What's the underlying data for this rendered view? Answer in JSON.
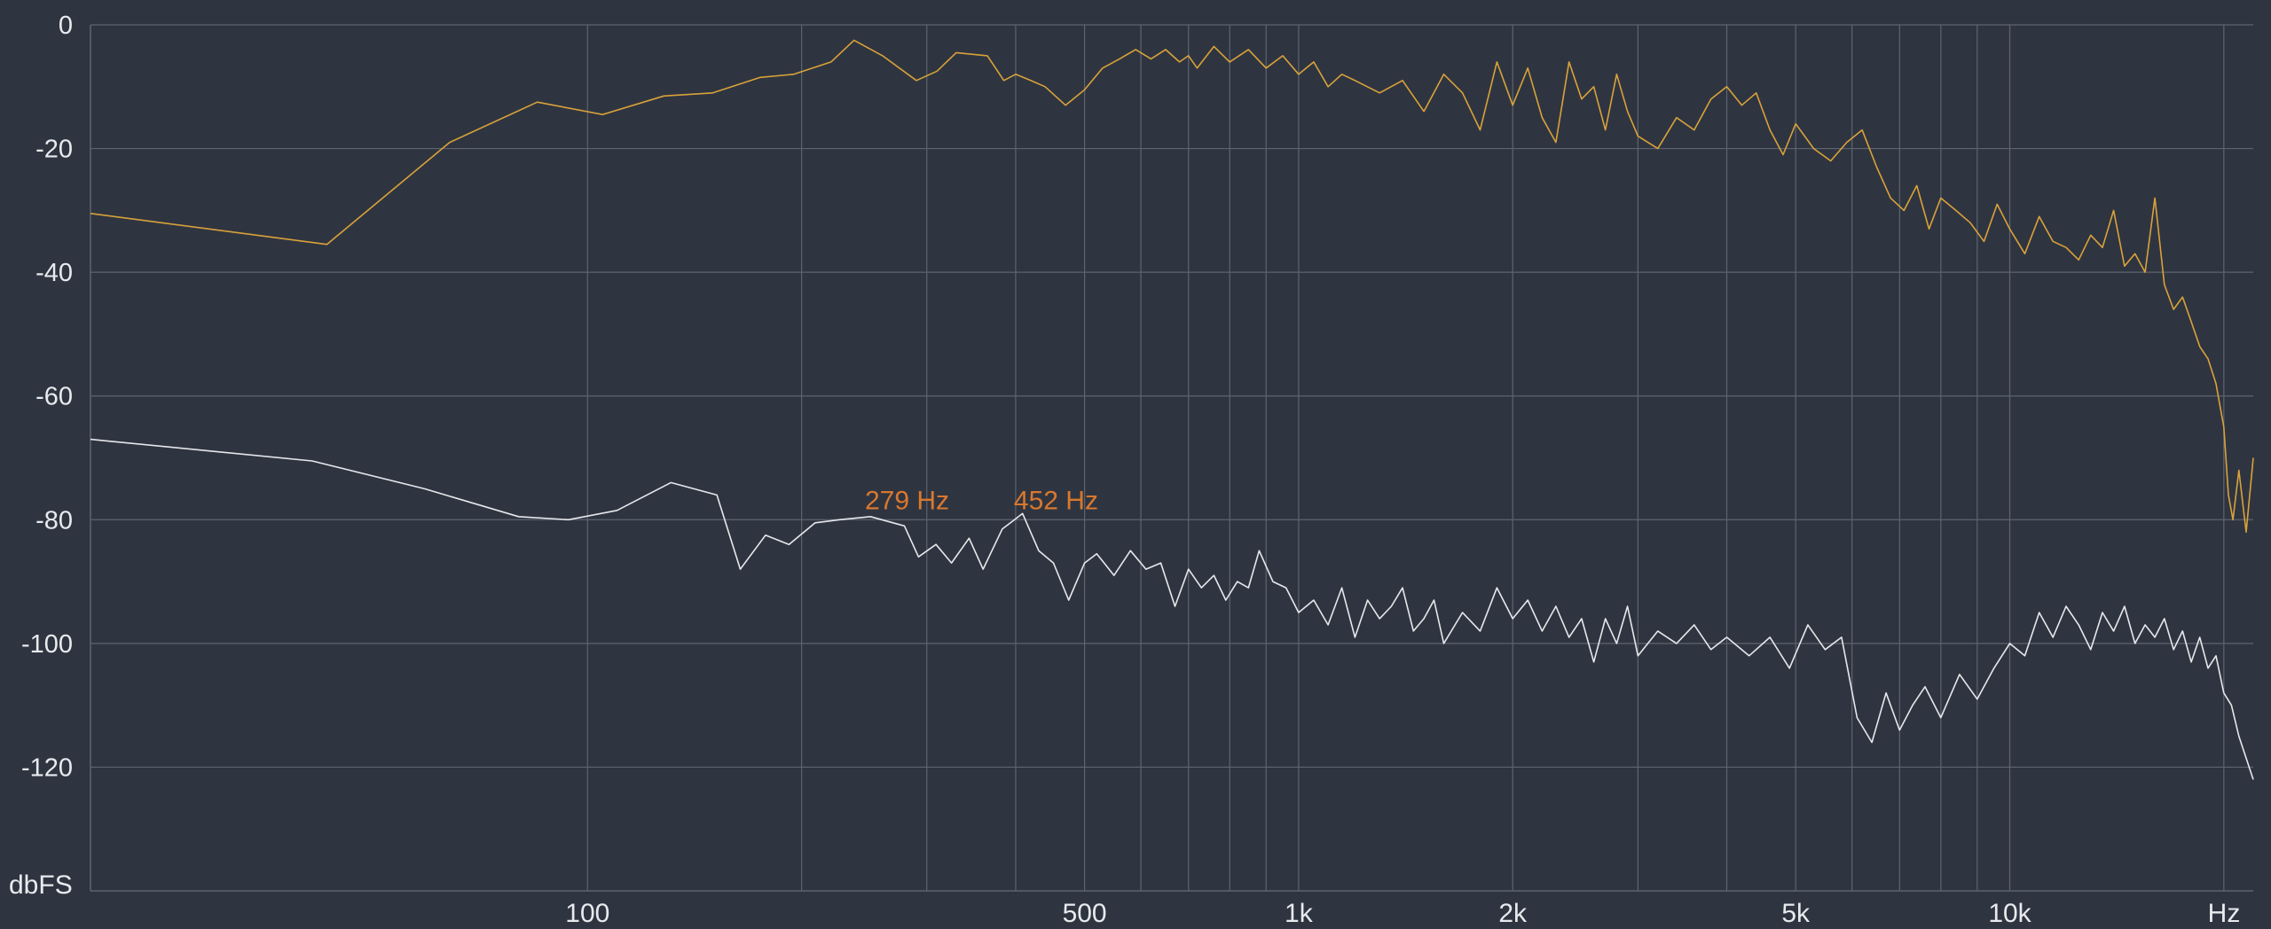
{
  "chart_data": {
    "type": "line",
    "title": "",
    "xlabel": "Hz",
    "ylabel": "dbFS",
    "x_scale": "log",
    "xlim": [
      20,
      22000
    ],
    "ylim": [
      -140,
      0
    ],
    "grid": true,
    "y_ticks": [
      0,
      -20,
      -40,
      -60,
      -80,
      -100,
      -120
    ],
    "y_tick_labels": [
      "0",
      "-20",
      "-40",
      "-60",
      "-80",
      "-100",
      "-120"
    ],
    "x_tick_values": [
      100,
      500,
      1000,
      2000,
      5000,
      10000
    ],
    "x_tick_labels": [
      "100",
      "500",
      "1k",
      "2k",
      "5k",
      "10k"
    ],
    "x_unit_label": "Hz",
    "y_unit_label": "dbFS",
    "minor_gridlines_hz": [
      100,
      200,
      300,
      400,
      500,
      600,
      700,
      800,
      900,
      1000,
      2000,
      3000,
      4000,
      5000,
      6000,
      7000,
      8000,
      9000,
      10000,
      20000
    ],
    "annotations": [
      {
        "text": "279 Hz",
        "x": 279,
        "y": -80
      },
      {
        "text": "452 Hz",
        "x": 452,
        "y": -80
      }
    ],
    "colors": {
      "background": "#2f3540",
      "grid": "#5d6470",
      "series_upper": "#d9a23a",
      "series_lower": "#e6e8ec",
      "annotation": "#d9782e",
      "text": "#e8eaee"
    },
    "series": [
      {
        "color": "#d9a23a",
        "x": [
          20,
          43,
          64,
          85,
          105,
          128,
          150,
          175,
          195,
          220,
          237,
          260,
          290,
          310,
          330,
          365,
          385,
          400,
          420,
          440,
          470,
          500,
          530,
          560,
          590,
          620,
          650,
          680,
          700,
          720,
          760,
          800,
          850,
          900,
          950,
          1000,
          1050,
          1100,
          1150,
          1200,
          1300,
          1400,
          1500,
          1600,
          1700,
          1800,
          1900,
          2000,
          2100,
          2200,
          2300,
          2400,
          2500,
          2600,
          2700,
          2800,
          2900,
          3000,
          3200,
          3400,
          3600,
          3800,
          4000,
          4200,
          4400,
          4600,
          4800,
          5000,
          5300,
          5600,
          5900,
          6200,
          6500,
          6800,
          7100,
          7400,
          7700,
          8000,
          8400,
          8800,
          9200,
          9600,
          10000,
          10500,
          11000,
          11500,
          12000,
          12500,
          13000,
          13500,
          14000,
          14500,
          15000,
          15500,
          16000,
          16500,
          17000,
          17500,
          18000,
          18500,
          19000,
          19500,
          20000,
          20300,
          20600,
          21000,
          21500,
          22000
        ],
        "y": [
          -30.5,
          -35.5,
          -19,
          -12.5,
          -14.5,
          -11.5,
          -11,
          -8.5,
          -8,
          -6,
          -2.5,
          -5,
          -9,
          -7.5,
          -4.5,
          -5,
          -9,
          -8,
          -9,
          -10,
          -13,
          -10.5,
          -7,
          -5.5,
          -4,
          -5.5,
          -4,
          -6,
          -5,
          -7,
          -3.5,
          -6,
          -4,
          -7,
          -5,
          -8,
          -6,
          -10,
          -8,
          -9,
          -11,
          -9,
          -14,
          -8,
          -11,
          -17,
          -6,
          -13,
          -7,
          -15,
          -19,
          -6,
          -12,
          -10,
          -17,
          -8,
          -14,
          -18,
          -20,
          -15,
          -17,
          -12,
          -10,
          -13,
          -11,
          -17,
          -21,
          -16,
          -20,
          -22,
          -19,
          -17,
          -23,
          -28,
          -30,
          -26,
          -33,
          -28,
          -30,
          -32,
          -35,
          -29,
          -33,
          -37,
          -31,
          -35,
          -36,
          -38,
          -34,
          -36,
          -30,
          -39,
          -37,
          -40,
          -28,
          -42,
          -46,
          -44,
          -48,
          -52,
          -54,
          -58,
          -65,
          -76,
          -80,
          -72,
          -82,
          -70
        ],
        "name": ""
      },
      {
        "color": "#e6e8ec",
        "x": [
          20,
          41,
          59,
          80,
          94,
          110,
          131,
          152,
          164,
          178,
          192,
          209,
          226,
          250,
          279,
          292,
          309,
          325,
          344,
          360,
          383,
          409,
          431,
          452,
          475,
          500,
          520,
          550,
          580,
          610,
          640,
          670,
          700,
          730,
          760,
          790,
          820,
          850,
          880,
          920,
          960,
          1000,
          1050,
          1100,
          1150,
          1200,
          1250,
          1300,
          1350,
          1400,
          1450,
          1500,
          1550,
          1600,
          1700,
          1800,
          1900,
          2000,
          2100,
          2200,
          2300,
          2400,
          2500,
          2600,
          2700,
          2800,
          2900,
          3000,
          3200,
          3400,
          3600,
          3800,
          4000,
          4300,
          4600,
          4900,
          5200,
          5500,
          5800,
          6100,
          6400,
          6700,
          7000,
          7300,
          7600,
          8000,
          8500,
          9000,
          9500,
          10000,
          10500,
          11000,
          11500,
          12000,
          12500,
          13000,
          13500,
          14000,
          14500,
          15000,
          15500,
          16000,
          16500,
          17000,
          17500,
          18000,
          18500,
          19000,
          19500,
          20000,
          20500,
          21000,
          22000
        ],
        "y": [
          -67,
          -70.5,
          -75,
          -79.5,
          -80,
          -78.5,
          -74,
          -76,
          -88,
          -82.5,
          -84,
          -80.5,
          -80,
          -79.5,
          -81,
          -86,
          -84,
          -87,
          -83,
          -88,
          -81.5,
          -79,
          -85,
          -87,
          -93,
          -87,
          -85.5,
          -89,
          -85,
          -88,
          -87,
          -94,
          -88,
          -91,
          -89,
          -93,
          -90,
          -91,
          -85,
          -90,
          -91,
          -95,
          -93,
          -97,
          -91,
          -99,
          -93,
          -96,
          -94,
          -91,
          -98,
          -96,
          -93,
          -100,
          -95,
          -98,
          -91,
          -96,
          -93,
          -98,
          -94,
          -99,
          -96,
          -103,
          -96,
          -100,
          -94,
          -102,
          -98,
          -100,
          -97,
          -101,
          -99,
          -102,
          -99,
          -104,
          -97,
          -101,
          -99,
          -112,
          -116,
          -108,
          -114,
          -110,
          -107,
          -112,
          -105,
          -109,
          -104,
          -100,
          -102,
          -95,
          -99,
          -94,
          -97,
          -101,
          -95,
          -98,
          -94,
          -100,
          -97,
          -99,
          -96,
          -101,
          -98,
          -103,
          -99,
          -104,
          -102,
          -108,
          -110,
          -115,
          -122
        ],
        "name": ""
      }
    ]
  }
}
